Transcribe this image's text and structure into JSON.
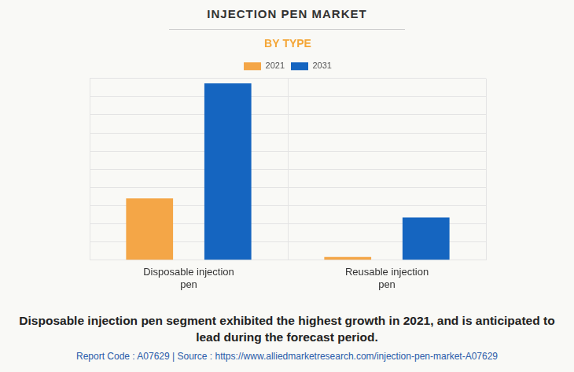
{
  "chart_data": {
    "type": "bar",
    "title": "INJECTION PEN MARKET",
    "subtitle": "BY TYPE",
    "categories": [
      "Disposable injection pen",
      "Reusable injection pen"
    ],
    "series": [
      {
        "name": "2021",
        "color": "#f4a647",
        "values": [
          3.4,
          0.18
        ]
      },
      {
        "name": "2031",
        "color": "#1565c0",
        "values": [
          9.73,
          2.35
        ]
      }
    ],
    "ylim": [
      0,
      10
    ],
    "yticks": [
      0,
      1,
      2,
      3,
      4,
      5,
      6,
      7,
      8,
      9,
      10
    ],
    "grid": true,
    "legend": "top",
    "tick_labels": "x",
    "annotations": [
      "Disposable injection pen segment exhibited the highest growth in 2021, and is anticipated to lead during the forecast period.",
      "Report Code : A07629  |  Source : https://www.alliedmarketresearch.com/injection-pen-market-A07629"
    ]
  }
}
